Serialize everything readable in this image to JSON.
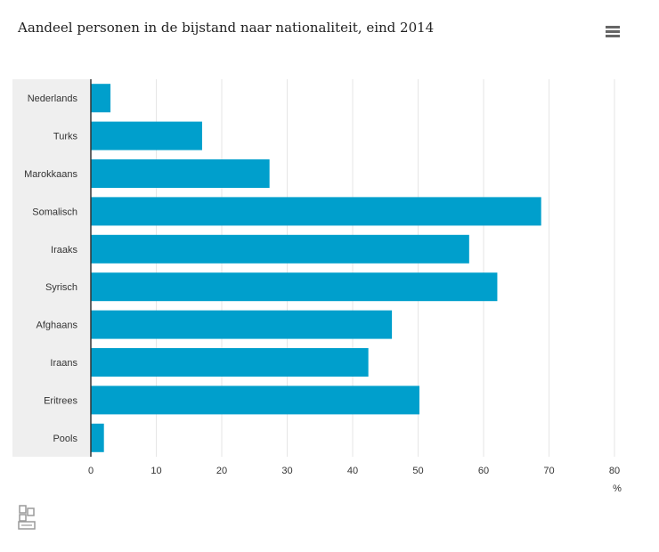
{
  "title": "Aandeel personen in de bijstand naar nationaliteit, eind 2014",
  "menu_icon": "hamburger-menu-icon",
  "logo_icon": "cbs-logo-icon",
  "colors": {
    "bar": "#009fcc",
    "category_band": "#efefef",
    "grid": "#e6e6e6",
    "axis": "#333333",
    "text": "#333333"
  },
  "chart_data": {
    "type": "bar",
    "orientation": "horizontal",
    "title": "Aandeel personen in de bijstand naar nationaliteit, eind 2014",
    "categories": [
      "Nederlands",
      "Turks",
      "Marokkaans",
      "Somalisch",
      "Iraaks",
      "Syrisch",
      "Afghaans",
      "Iraans",
      "Eritrees",
      "Pools"
    ],
    "values": [
      3,
      17,
      27.3,
      68.8,
      57.8,
      62.1,
      46,
      42.4,
      50.2,
      2
    ],
    "xlim": [
      0,
      80
    ],
    "xticks": [
      "0",
      "10",
      "20",
      "30",
      "40",
      "50",
      "60",
      "70",
      "80"
    ],
    "xlabel": "%",
    "ylabel": "",
    "grid": true,
    "legend": "none"
  }
}
